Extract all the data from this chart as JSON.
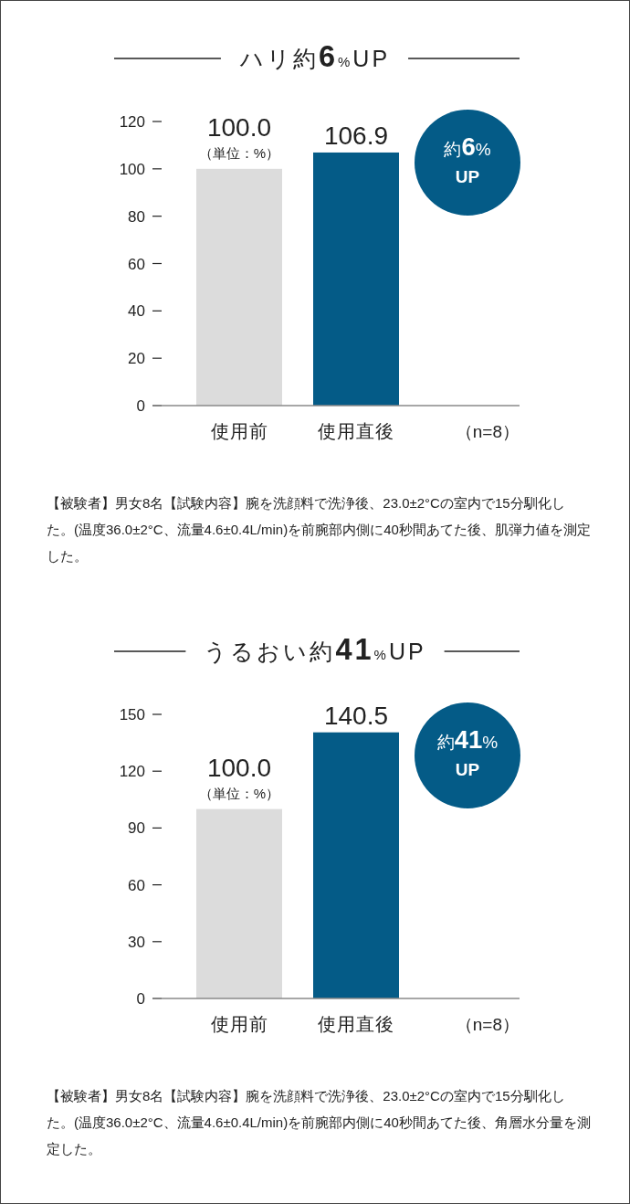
{
  "chart_data": [
    {
      "type": "bar",
      "title": "ハリ約6%UP",
      "categories": [
        "使用前",
        "使用直後"
      ],
      "values": [
        100.0,
        106.9
      ],
      "colors": [
        "#dcdcdc",
        "#045b87"
      ],
      "value_labels": [
        "100.0",
        "106.9"
      ],
      "ylim": [
        0,
        120
      ],
      "yticks": [
        0,
        20,
        40,
        60,
        80,
        100,
        120
      ],
      "annotations": [
        "（単位：%）",
        "（n=8）",
        "約6%\nUP",
        "【被験者】男女8名【試験内容】腕を洗顔料で洗浄後、23.0±2°Cの室内で15分馴化した。(温度36.0±2°C、流量4.6±0.4L/min)を前腕部内側に40秒間あてた後、肌弾力値を測定した。"
      ]
    },
    {
      "type": "bar",
      "title": "うるおい約41%UP",
      "categories": [
        "使用前",
        "使用直後"
      ],
      "values": [
        100.0,
        140.5
      ],
      "colors": [
        "#dcdcdc",
        "#045b87"
      ],
      "value_labels": [
        "100.0",
        "140.5"
      ],
      "ylim": [
        0,
        150
      ],
      "yticks": [
        0,
        30,
        60,
        90,
        120,
        150
      ],
      "annotations": [
        "（単位：%）",
        "（n=8）",
        "約41%\nUP",
        "【被験者】男女8名【試験内容】腕を洗顔料で洗浄後、23.0±2°Cの室内で15分馴化した。(温度36.0±2°C、流量4.6±0.4L/min)を前腕部内側に40秒間あてた後、角層水分量を測定した。"
      ]
    }
  ]
}
